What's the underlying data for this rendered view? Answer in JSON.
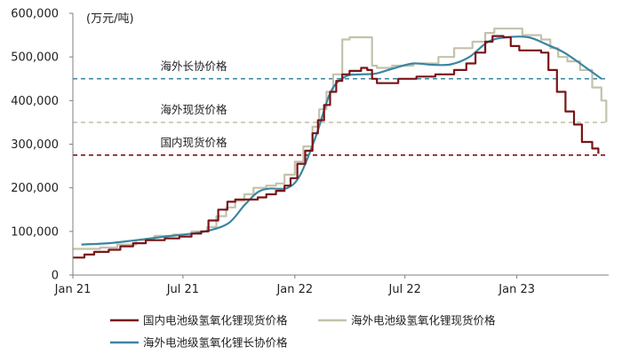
{
  "chart_data": {
    "type": "line",
    "title": "",
    "unit_label": "(万元/吨)",
    "xlabel": "",
    "ylabel": "",
    "ylim": [
      0,
      600000
    ],
    "xlim": [
      "2021-01",
      "2023-06"
    ],
    "y_ticks": [
      0,
      100000,
      200000,
      300000,
      400000,
      500000,
      600000
    ],
    "y_tick_labels": [
      "0",
      "100,000",
      "200,000",
      "300,000",
      "400,000",
      "500,000",
      "600,000"
    ],
    "x_ticks": [
      "2021-01",
      "2021-07",
      "2022-01",
      "2022-07",
      "2023-01"
    ],
    "x_tick_labels": [
      "Jan 21",
      "Jul 21",
      "Jan 22",
      "Jul 22",
      "Jan 23"
    ],
    "grid": false,
    "legend_position": "bottom",
    "series": [
      {
        "name": "国内电池级氢氧化锂现货价格",
        "color": "#7a1418",
        "shape": "step",
        "points": [
          [
            "2021-01-01",
            40000
          ],
          [
            "2021-01-20",
            47000
          ],
          [
            "2021-02-05",
            53000
          ],
          [
            "2021-03-01",
            58000
          ],
          [
            "2021-03-20",
            66000
          ],
          [
            "2021-04-10",
            73000
          ],
          [
            "2021-05-01",
            80000
          ],
          [
            "2021-06-01",
            84000
          ],
          [
            "2021-06-25",
            88000
          ],
          [
            "2021-07-15",
            95000
          ],
          [
            "2021-07-31",
            100000
          ],
          [
            "2021-08-12",
            125000
          ],
          [
            "2021-08-28",
            150000
          ],
          [
            "2021-09-12",
            168000
          ],
          [
            "2021-09-25",
            173000
          ],
          [
            "2021-10-10",
            173000
          ],
          [
            "2021-11-01",
            178000
          ],
          [
            "2021-11-15",
            185000
          ],
          [
            "2021-12-01",
            193000
          ],
          [
            "2021-12-15",
            205000
          ],
          [
            "2021-12-25",
            222000
          ],
          [
            "2022-01-05",
            255000
          ],
          [
            "2022-01-18",
            285000
          ],
          [
            "2022-01-30",
            325000
          ],
          [
            "2022-02-08",
            355000
          ],
          [
            "2022-02-18",
            390000
          ],
          [
            "2022-02-28",
            420000
          ],
          [
            "2022-03-10",
            445000
          ],
          [
            "2022-03-20",
            460000
          ],
          [
            "2022-04-01",
            468000
          ],
          [
            "2022-04-20",
            475000
          ],
          [
            "2022-04-30",
            470000
          ],
          [
            "2022-05-08",
            450000
          ],
          [
            "2022-05-16",
            440000
          ],
          [
            "2022-06-10",
            440000
          ],
          [
            "2022-06-20",
            450000
          ],
          [
            "2022-07-20",
            455000
          ],
          [
            "2022-08-20",
            460000
          ],
          [
            "2022-09-20",
            470000
          ],
          [
            "2022-10-10",
            485000
          ],
          [
            "2022-10-25",
            510000
          ],
          [
            "2022-11-10",
            535000
          ],
          [
            "2022-11-22",
            548000
          ],
          [
            "2022-12-10",
            545000
          ],
          [
            "2022-12-22",
            525000
          ],
          [
            "2023-01-05",
            515000
          ],
          [
            "2023-02-10",
            510000
          ],
          [
            "2023-02-22",
            470000
          ],
          [
            "2023-03-08",
            420000
          ],
          [
            "2023-03-22",
            375000
          ],
          [
            "2023-04-05",
            345000
          ],
          [
            "2023-04-18",
            305000
          ],
          [
            "2023-05-05",
            290000
          ],
          [
            "2023-05-15",
            278000
          ]
        ]
      },
      {
        "name": "海外电池级氢氧化锂现货价格",
        "color": "#c3c2ab",
        "shape": "step",
        "points": [
          [
            "2021-01-01",
            60000
          ],
          [
            "2021-02-15",
            63000
          ],
          [
            "2021-03-15",
            70000
          ],
          [
            "2021-04-15",
            80000
          ],
          [
            "2021-05-15",
            90000
          ],
          [
            "2021-06-15",
            93000
          ],
          [
            "2021-07-15",
            100000
          ],
          [
            "2021-08-10",
            110000
          ],
          [
            "2021-08-25",
            135000
          ],
          [
            "2021-09-10",
            155000
          ],
          [
            "2021-09-25",
            170000
          ],
          [
            "2021-10-10",
            185000
          ],
          [
            "2021-10-25",
            200000
          ],
          [
            "2021-11-15",
            205000
          ],
          [
            "2021-12-01",
            210000
          ],
          [
            "2021-12-15",
            230000
          ],
          [
            "2022-01-01",
            260000
          ],
          [
            "2022-01-15",
            295000
          ],
          [
            "2022-01-30",
            340000
          ],
          [
            "2022-02-10",
            380000
          ],
          [
            "2022-02-22",
            420000
          ],
          [
            "2022-03-05",
            460000
          ],
          [
            "2022-03-20",
            540000
          ],
          [
            "2022-04-01",
            545000
          ],
          [
            "2022-04-30",
            545000
          ],
          [
            "2022-05-08",
            480000
          ],
          [
            "2022-05-16",
            475000
          ],
          [
            "2022-06-10",
            480000
          ],
          [
            "2022-07-15",
            485000
          ],
          [
            "2022-08-25",
            500000
          ],
          [
            "2022-09-20",
            520000
          ],
          [
            "2022-10-20",
            535000
          ],
          [
            "2022-11-10",
            555000
          ],
          [
            "2022-11-25",
            565000
          ],
          [
            "2022-12-15",
            565000
          ],
          [
            "2023-01-10",
            550000
          ],
          [
            "2023-02-10",
            540000
          ],
          [
            "2023-02-25",
            520000
          ],
          [
            "2023-03-10",
            500000
          ],
          [
            "2023-03-25",
            490000
          ],
          [
            "2023-04-15",
            470000
          ],
          [
            "2023-05-05",
            430000
          ],
          [
            "2023-05-20",
            400000
          ],
          [
            "2023-05-28",
            350000
          ]
        ]
      },
      {
        "name": "海外电池级氢氧化锂长协价格",
        "color": "#3a86a0",
        "shape": "smooth",
        "points": [
          [
            "2021-01-15",
            70000
          ],
          [
            "2021-03-01",
            73000
          ],
          [
            "2021-04-15",
            80000
          ],
          [
            "2021-06-01",
            88000
          ],
          [
            "2021-07-15",
            95000
          ],
          [
            "2021-08-15",
            103000
          ],
          [
            "2021-09-15",
            120000
          ],
          [
            "2021-10-10",
            160000
          ],
          [
            "2021-11-01",
            190000
          ],
          [
            "2021-11-20",
            198000
          ],
          [
            "2021-12-20",
            200000
          ],
          [
            "2022-01-10",
            230000
          ],
          [
            "2022-02-05",
            320000
          ],
          [
            "2022-03-01",
            420000
          ],
          [
            "2022-03-25",
            455000
          ],
          [
            "2022-04-20",
            460000
          ],
          [
            "2022-05-15",
            462000
          ],
          [
            "2022-06-15",
            475000
          ],
          [
            "2022-07-15",
            485000
          ],
          [
            "2022-08-15",
            482000
          ],
          [
            "2022-09-15",
            483000
          ],
          [
            "2022-10-15",
            500000
          ],
          [
            "2022-11-15",
            535000
          ],
          [
            "2022-12-15",
            545000
          ],
          [
            "2023-01-20",
            545000
          ],
          [
            "2023-02-20",
            528000
          ],
          [
            "2023-03-20",
            510000
          ],
          [
            "2023-04-20",
            480000
          ],
          [
            "2023-05-20",
            450000
          ]
        ]
      }
    ],
    "reference_lines": [
      {
        "name": "海外长协价格",
        "label": "海外长协价格",
        "value": 450000,
        "color": "#3a86a0"
      },
      {
        "name": "海外现货价格",
        "label": "海外现货价格",
        "value": 350000,
        "color": "#c3c2ab"
      },
      {
        "name": "国内现货价格",
        "label": "国内现货价格",
        "value": 275000,
        "color": "#7a1418"
      }
    ]
  }
}
